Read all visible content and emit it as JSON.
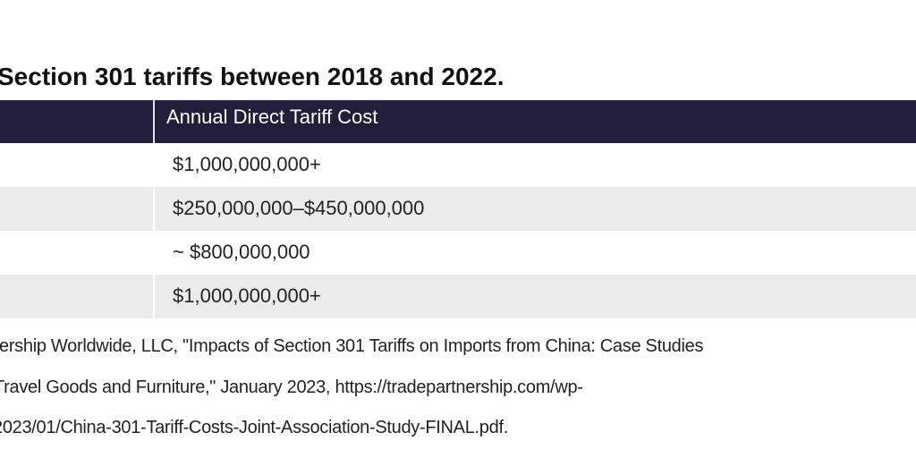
{
  "title": "Section 301 tariffs between 2018 and 2022.",
  "table": {
    "header": "Annual Direct Tariff Cost",
    "rows": [
      "$1,000,000,000+",
      "$250,000,000–$450,000,000",
      "~ $800,000,000",
      "$1,000,000,000+"
    ]
  },
  "source": [
    "ership Worldwide, LLC, \"Impacts of Section 301 Tariffs on Imports from China: Case Studies",
    "Travel Goods and Furniture,\" January 2023, https://tradepartnership.com/wp-",
    "2023/01/China-301-Tariff-Costs-Joint-Association-Study-FINAL.pdf."
  ]
}
